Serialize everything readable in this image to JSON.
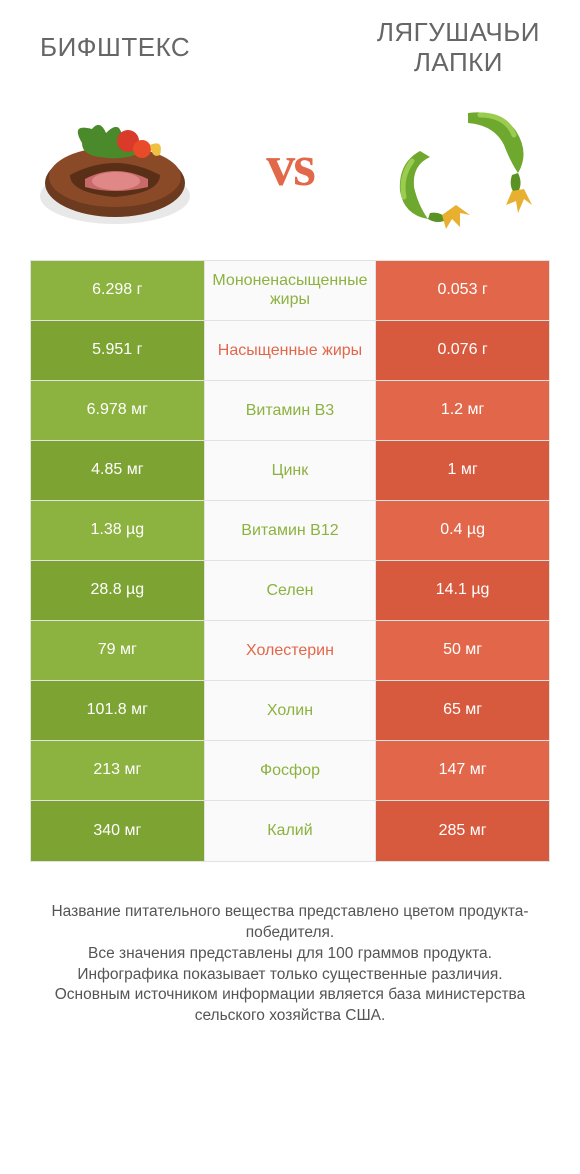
{
  "colors": {
    "green": "#8cb23f",
    "green_dark": "#7da332",
    "orange": "#e2674a",
    "orange_dark": "#d85a3e",
    "vs": "#e2684a",
    "mid_green_text": "#8cb23f",
    "mid_green_link": "#a3c25e",
    "mid_orange_text": "#e2674a",
    "title": "#666666",
    "footer": "#555555",
    "border": "#e2e2e2",
    "mid_bg": "#fafafa"
  },
  "header": {
    "left": "БИФШТЕКС",
    "right": "ЛЯГУШАЧЬИ\nЛАПКИ",
    "vs": "vs"
  },
  "rows": [
    {
      "left": "6.298 г",
      "mid": "Мононенасыщенные жиры",
      "right": "0.053 г",
      "mid_color": "green",
      "left_shade": "green",
      "right_shade": "orange"
    },
    {
      "left": "5.951 г",
      "mid": "Насыщенные жиры",
      "right": "0.076 г",
      "mid_color": "orange",
      "left_shade": "green_dark",
      "right_shade": "orange_dark"
    },
    {
      "left": "6.978 мг",
      "mid": "Витамин B3",
      "right": "1.2 мг",
      "mid_color": "green",
      "left_shade": "green",
      "right_shade": "orange"
    },
    {
      "left": "4.85 мг",
      "mid": "Цинк",
      "right": "1 мг",
      "mid_color": "green",
      "left_shade": "green_dark",
      "right_shade": "orange_dark"
    },
    {
      "left": "1.38 µg",
      "mid": "Витамин B12",
      "right": "0.4 µg",
      "mid_color": "green",
      "left_shade": "green",
      "right_shade": "orange"
    },
    {
      "left": "28.8 µg",
      "mid": "Селен",
      "right": "14.1 µg",
      "mid_color": "green",
      "left_shade": "green_dark",
      "right_shade": "orange_dark"
    },
    {
      "left": "79 мг",
      "mid": "Холестерин",
      "right": "50 мг",
      "mid_color": "orange",
      "left_shade": "green",
      "right_shade": "orange"
    },
    {
      "left": "101.8 мг",
      "mid": "Холин",
      "right": "65 мг",
      "mid_color": "green",
      "left_shade": "green_dark",
      "right_shade": "orange_dark"
    },
    {
      "left": "213 мг",
      "mid": "Фосфор",
      "right": "147 мг",
      "mid_color": "green",
      "left_shade": "green",
      "right_shade": "orange"
    },
    {
      "left": "340 мг",
      "mid": "Калий",
      "right": "285 мг",
      "mid_color": "green",
      "left_shade": "green_dark",
      "right_shade": "orange_dark"
    }
  ],
  "footer": [
    "Название питательного вещества представлено цветом продукта-победителя.",
    "Все значения представлены для 100 граммов продукта.",
    "Инфографика показывает только существенные различия.",
    "Основным источником информации является база министерства сельского хозяйства США."
  ]
}
